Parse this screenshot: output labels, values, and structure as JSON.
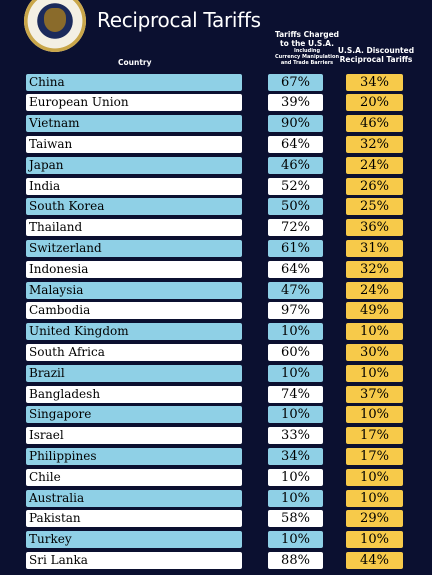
{
  "header": {
    "title": "Reciprocal Tariffs",
    "seal_text": "SEAL OF THE PRESIDENT OF THE UNITED STATES"
  },
  "columns": {
    "country": "Country",
    "charged_line1": "Tariffs Charged",
    "charged_line2": "to the U.S.A.",
    "charged_line3": "Including",
    "charged_line4": "Currency Manipulation",
    "charged_line5": "and Trade Barriers",
    "discounted_line1": "U.S.A. Discounted",
    "discounted_line2": "Reciprocal Tariffs"
  },
  "chart_data": {
    "type": "table",
    "title": "Reciprocal Tariffs",
    "columns": [
      "Country",
      "Tariffs Charged to the U.S.A. Including Currency Manipulation and Trade Barriers",
      "U.S.A. Discounted Reciprocal Tariffs"
    ],
    "rows": [
      {
        "country": "China",
        "charged": "67%",
        "discounted": "34%"
      },
      {
        "country": "European Union",
        "charged": "39%",
        "discounted": "20%"
      },
      {
        "country": "Vietnam",
        "charged": "90%",
        "discounted": "46%"
      },
      {
        "country": "Taiwan",
        "charged": "64%",
        "discounted": "32%"
      },
      {
        "country": "Japan",
        "charged": "46%",
        "discounted": "24%"
      },
      {
        "country": "India",
        "charged": "52%",
        "discounted": "26%"
      },
      {
        "country": "South Korea",
        "charged": "50%",
        "discounted": "25%"
      },
      {
        "country": "Thailand",
        "charged": "72%",
        "discounted": "36%"
      },
      {
        "country": "Switzerland",
        "charged": "61%",
        "discounted": "31%"
      },
      {
        "country": "Indonesia",
        "charged": "64%",
        "discounted": "32%"
      },
      {
        "country": "Malaysia",
        "charged": "47%",
        "discounted": "24%"
      },
      {
        "country": "Cambodia",
        "charged": "97%",
        "discounted": "49%"
      },
      {
        "country": "United Kingdom",
        "charged": "10%",
        "discounted": "10%"
      },
      {
        "country": "South Africa",
        "charged": "60%",
        "discounted": "30%"
      },
      {
        "country": "Brazil",
        "charged": "10%",
        "discounted": "10%"
      },
      {
        "country": "Bangladesh",
        "charged": "74%",
        "discounted": "37%"
      },
      {
        "country": "Singapore",
        "charged": "10%",
        "discounted": "10%"
      },
      {
        "country": "Israel",
        "charged": "33%",
        "discounted": "17%"
      },
      {
        "country": "Philippines",
        "charged": "34%",
        "discounted": "17%"
      },
      {
        "country": "Chile",
        "charged": "10%",
        "discounted": "10%"
      },
      {
        "country": "Australia",
        "charged": "10%",
        "discounted": "10%"
      },
      {
        "country": "Pakistan",
        "charged": "58%",
        "discounted": "29%"
      },
      {
        "country": "Turkey",
        "charged": "10%",
        "discounted": "10%"
      },
      {
        "country": "Sri Lanka",
        "charged": "88%",
        "discounted": "44%"
      }
    ]
  },
  "colors": {
    "background": "#0b1030",
    "row_blue": "#8fd0e6",
    "row_white": "#ffffff",
    "discount_yellow": "#f7ca4a"
  }
}
